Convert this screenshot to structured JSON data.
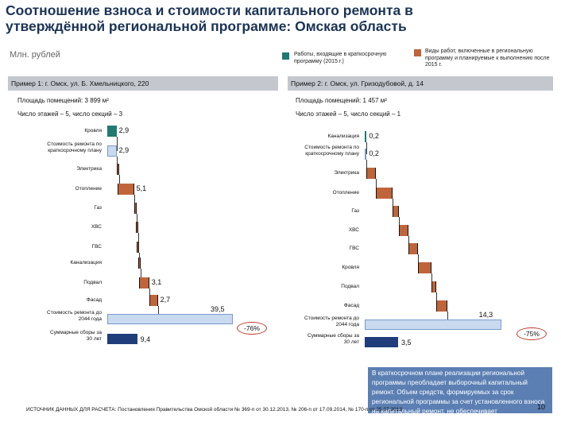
{
  "title": "Соотношение взноса и стоимости капитального ремонта в утверждённой региональной программе: Омская область",
  "units": "Млн. рублей",
  "legend": [
    {
      "color": "#1f7a70",
      "text": "Работы, входящие в краткосрочную программу (2015 г.)"
    },
    {
      "color": "#c0643a",
      "text": "Виды работ, включенные в региональную программу и планируемые к выполнению после 2015 г."
    }
  ],
  "panels": [
    {
      "header": "Пример 1: г. Омск, ул. Б. Хмельницкого, 220",
      "area": "Площадь помещений: 3 899 м²",
      "floors": "Число этажей – 5, число секций – 3"
    },
    {
      "header": "Пример 2: г. Омск, ул. Гризодубовой, д. 14",
      "area": "Площадь помещений: 1 457 м²",
      "floors": "Число этажей – 5, число секций – 1"
    }
  ],
  "chart_data": [
    {
      "type": "bar",
      "title": "Пример 1: г. Омск, ул. Б. Хмельницкого, 220",
      "categories": [
        "Кровля",
        "Стоимость ремонта по краткосрочному плану",
        "Электрика",
        "Отопление",
        "Газ",
        "ХВС",
        "ГВС",
        "Канализация",
        "Подвал",
        "Фасад",
        "Стоимость ремонта до 2044 года",
        "Суммарные сборы за 30 лет"
      ],
      "values": [
        2.9,
        2.9,
        0.4,
        5.1,
        0.5,
        0.4,
        0.4,
        0.4,
        3.1,
        2.7,
        39.5,
        9.4
      ],
      "value_labels": [
        "2,9",
        "2,9",
        "",
        "5,1",
        "",
        "",
        "",
        "",
        "3,1",
        "2,7",
        "39,5",
        "9,4"
      ],
      "annotation": "-76%"
    },
    {
      "type": "bar",
      "title": "Пример 2: г. Омск, ул. Гризодубовой, д. 14",
      "categories": [
        "Канализация",
        "Стоимость ремонта по краткосрочному плану",
        "Электрика",
        "Отопление",
        "Газ",
        "ХВС",
        "ГВС",
        "Кровля",
        "Подвал",
        "Фасад",
        "Стоимость ремонта до 2044 года",
        "Суммарные сборы за 30 лет"
      ],
      "values": [
        0.2,
        0.2,
        1.0,
        1.7,
        0.7,
        1.0,
        1.0,
        1.4,
        0.5,
        1.2,
        14.3,
        3.5
      ],
      "value_labels": [
        "0,2",
        "0,2",
        "",
        "",
        "",
        "",
        "",
        "",
        "",
        "",
        "14,3",
        "3,5"
      ],
      "annotation": "-75%"
    }
  ],
  "summary": "В краткосрочном плане реализации региональной программы преобладает выборочный капитальный ремонт. Объем средств, формируемых за срок региональной программы за счет установленного взноса на капитальный ремонт, не обеспечивает финансирование капитального ремонта.",
  "source": "ИСТОЧНИК ДАННЫХ ДЛЯ РАСЧЕТА: Постановления Правительства Омской области № 369-п от 30.12.2013, № 206-п от 17.09.2014, № 170-п от 25.07.2013",
  "page": "10",
  "colors": {
    "teal": "#1f7a70",
    "brown": "#c0643a",
    "navy": "#1f3d7a",
    "lightblue": "#c9d9ef",
    "accent": "#5b7fb3"
  }
}
